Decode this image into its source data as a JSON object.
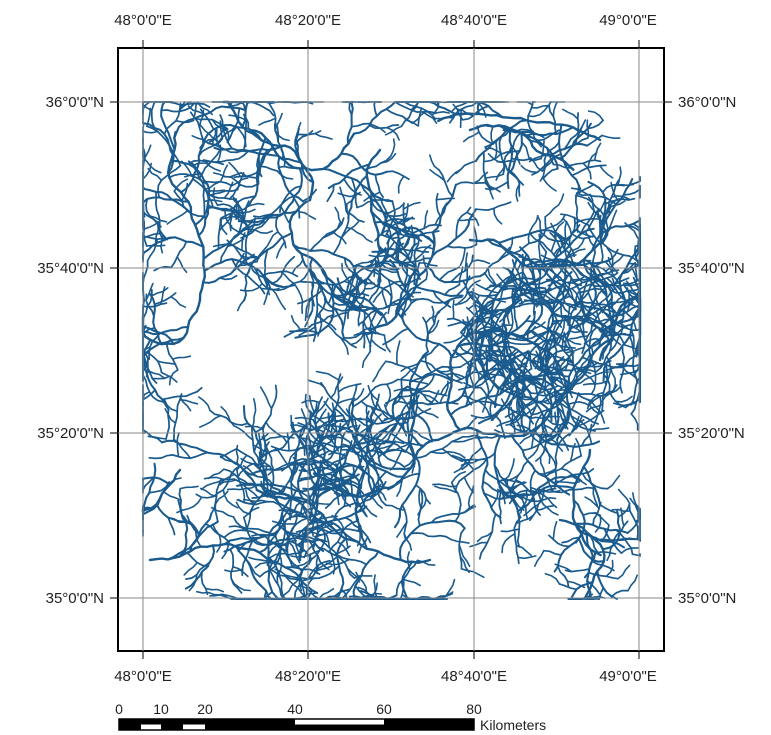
{
  "map": {
    "top_lon_labels": [
      "48°0'0\"E",
      "48°20'0\"E",
      "48°40'0\"E",
      "49°0'0\"E"
    ],
    "bottom_lon_labels": [
      "48°0'0\"E",
      "48°20'0\"E",
      "48°40'0\"E",
      "49°0'0\"E"
    ],
    "left_lat_labels": [
      "36°0'0\"N",
      "35°40'0\"N",
      "35°20'0\"N",
      "35°0'0\"N"
    ],
    "right_lat_labels": [
      "36°0'0\"N",
      "35°40'0\"N",
      "35°20'0\"N",
      "35°0'0\"N"
    ],
    "stream_color": "#1a5a8c",
    "grid_color": "#8a8a8a",
    "frame_color": "#000000",
    "content": "river drainage network"
  },
  "scale_bar": {
    "tick_labels": [
      "0",
      "10",
      "20",
      "40",
      "60",
      "80"
    ],
    "unit": "Kilometers"
  }
}
